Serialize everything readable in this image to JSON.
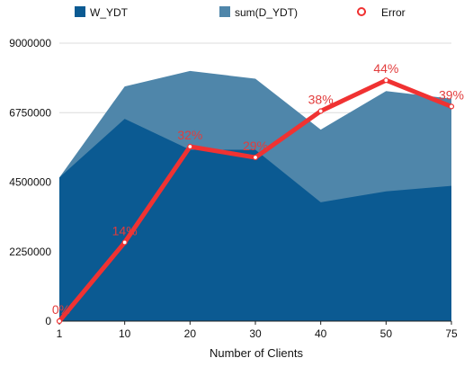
{
  "chart_data": {
    "type": "area",
    "x_categories": [
      "1",
      "10",
      "20",
      "30",
      "40",
      "50",
      "75"
    ],
    "xlabel": "Number of Clients",
    "ylabel": "",
    "y_ticks": [
      "0",
      "2250000",
      "4500000",
      "6750000",
      "9000000"
    ],
    "ylim": [
      0,
      9000000
    ],
    "grid": true,
    "legend_placement": "top",
    "series": [
      {
        "name": "W_YDT",
        "kind": "area",
        "color": "#0b5a92",
        "values": [
          4650000,
          6550000,
          5550000,
          5550000,
          3850000,
          4200000,
          4380000
        ]
      },
      {
        "name": "sum(D_YDT)",
        "kind": "area",
        "color": "#4f86aa",
        "values": [
          4650000,
          7600000,
          8100000,
          7850000,
          6200000,
          7450000,
          7200000
        ]
      },
      {
        "name": "Error",
        "kind": "line",
        "color": "#f03232",
        "axis_scale": [
          0,
          9000000
        ],
        "values": [
          0,
          2550000,
          5650000,
          5300000,
          6800000,
          7800000,
          6950000
        ],
        "labels": [
          "0%",
          "14%",
          "32%",
          "29%",
          "38%",
          "44%",
          "39%"
        ]
      }
    ]
  }
}
